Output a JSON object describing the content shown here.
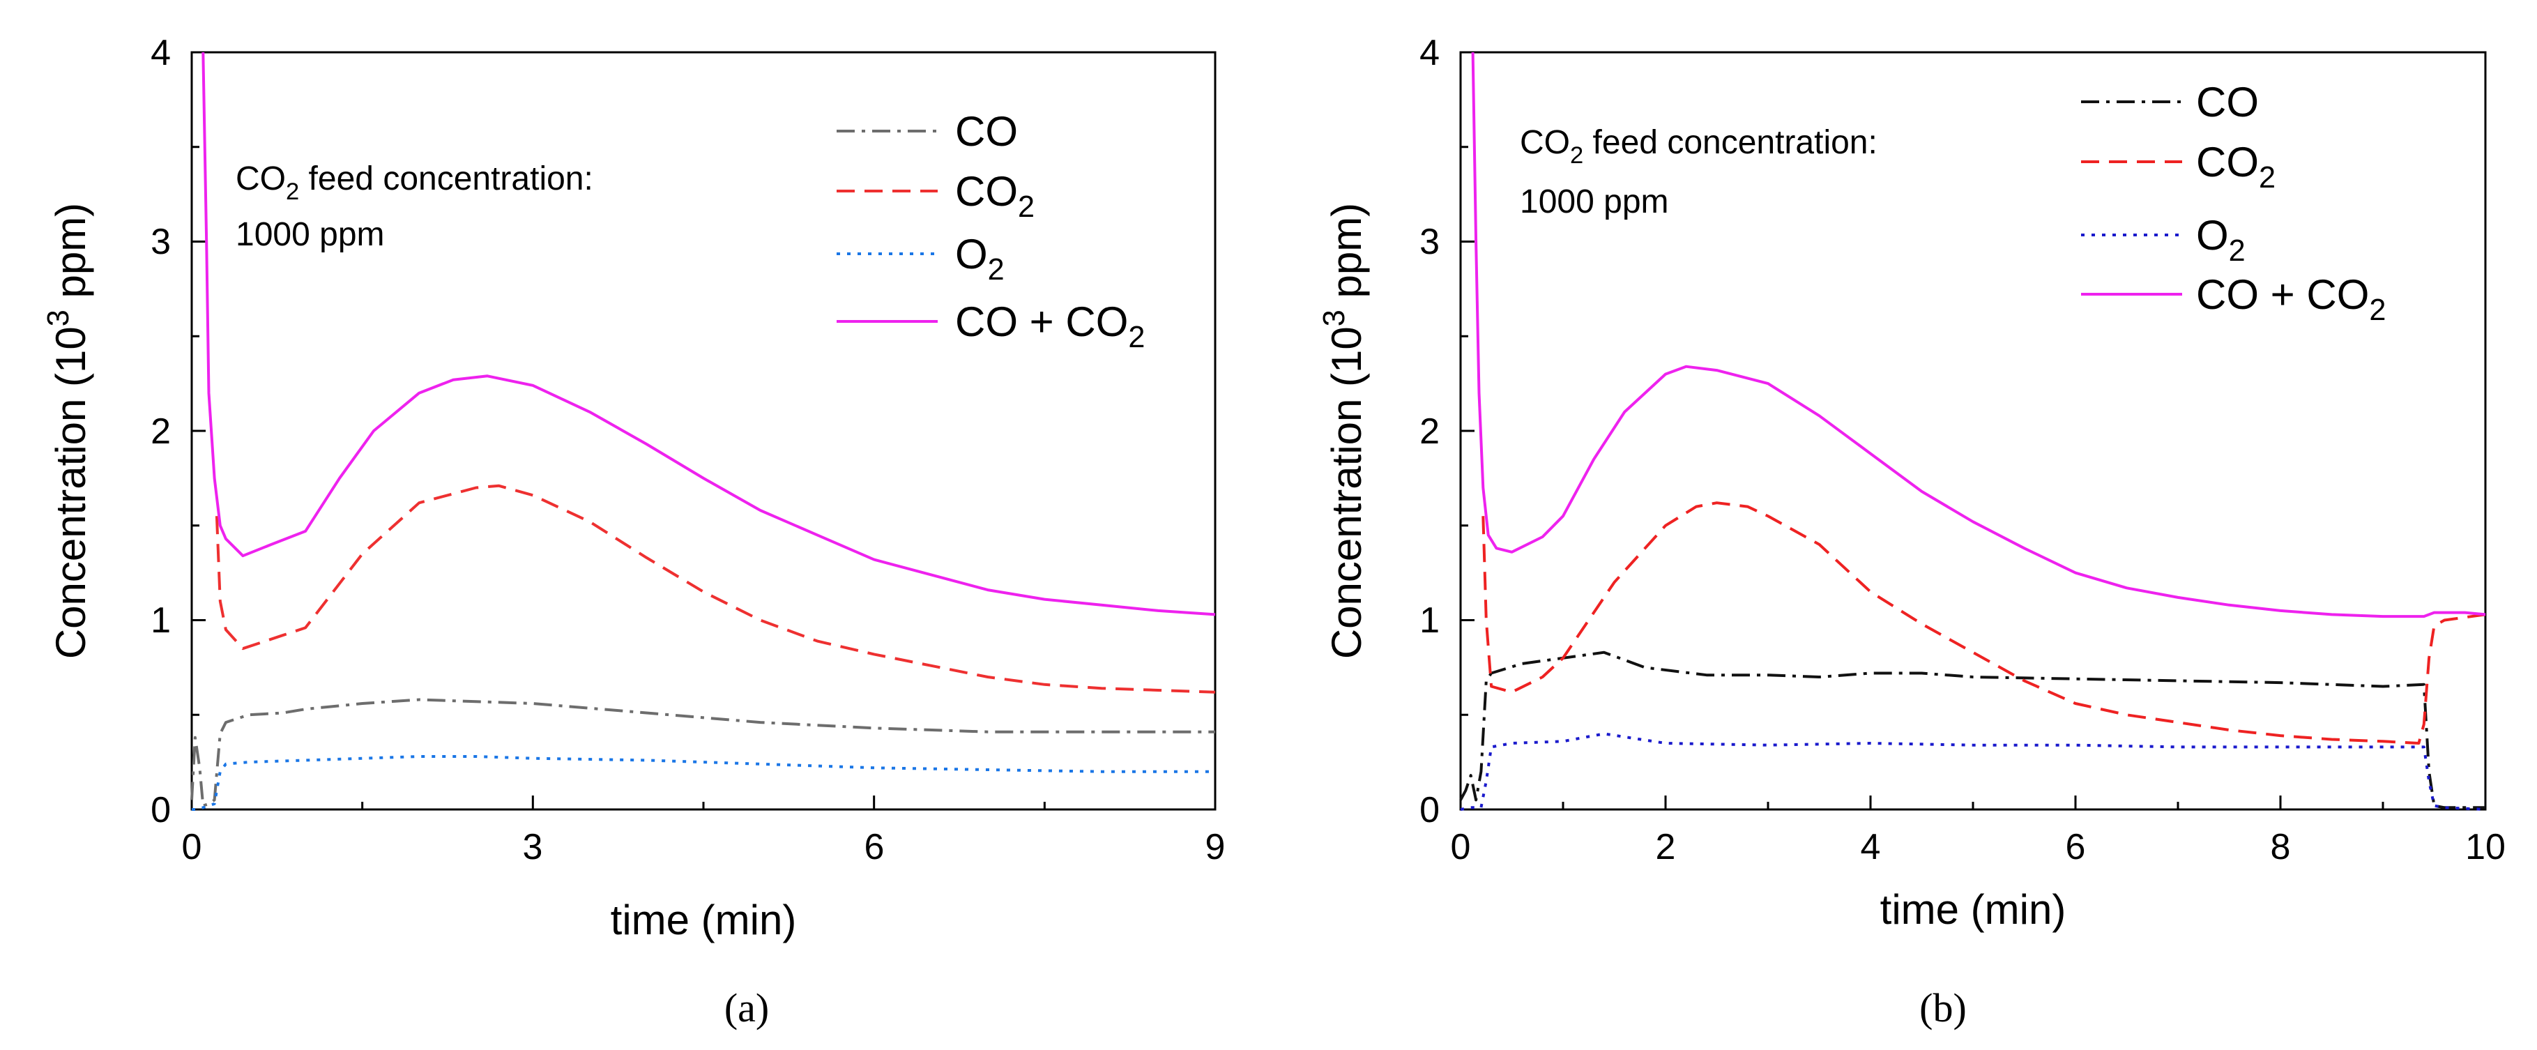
{
  "chart_data": [
    {
      "type": "line",
      "panel": "a",
      "caption": "(a)",
      "xlabel": "time (min)",
      "ylabel_prefix": "Concentration (10",
      "ylabel_sup": "3",
      "ylabel_suffix": " ppm)",
      "xlim": [
        0,
        9
      ],
      "ylim": [
        0,
        4
      ],
      "x_ticks": [
        0,
        3,
        6,
        9
      ],
      "x_tick_labels": [
        "0",
        "3",
        "6",
        "9"
      ],
      "y_ticks": [
        0,
        1,
        2,
        3,
        4
      ],
      "y_tick_labels": [
        "0",
        "1",
        "2",
        "3",
        "4"
      ],
      "annotation": {
        "line1_prefix": "CO",
        "line1_sub": "2",
        "line1_suffix": " feed concentration:",
        "line2": "1000 ppm"
      },
      "legend_position": "top-right",
      "series": [
        {
          "key": "co",
          "name": "CO",
          "legend_label": "CO",
          "legend_sub": "",
          "color": "#6d6d6d",
          "dash": "dashdot",
          "x": [
            0,
            0.03,
            0.07,
            0.1,
            0.15,
            0.2,
            0.25,
            0.3,
            0.5,
            0.8,
            1,
            1.5,
            2,
            2.5,
            3,
            4,
            5,
            6,
            7,
            8,
            9
          ],
          "y": [
            0.05,
            0.38,
            0.22,
            0.02,
            0.03,
            0.05,
            0.4,
            0.46,
            0.5,
            0.51,
            0.53,
            0.56,
            0.58,
            0.57,
            0.56,
            0.51,
            0.46,
            0.43,
            0.41,
            0.41,
            0.41
          ]
        },
        {
          "key": "co2",
          "name": "CO2",
          "legend_label": "CO",
          "legend_sub": "2",
          "color": "#ee3030",
          "dash": "dashed",
          "x": [
            0.22,
            0.25,
            0.3,
            0.45,
            0.8,
            1,
            1.5,
            2,
            2.5,
            2.7,
            3,
            3.5,
            4,
            4.5,
            5,
            5.5,
            6,
            6.5,
            7,
            7.5,
            8,
            8.5,
            9
          ],
          "y": [
            1.55,
            1.1,
            0.95,
            0.85,
            0.92,
            0.96,
            1.35,
            1.62,
            1.7,
            1.71,
            1.66,
            1.52,
            1.33,
            1.15,
            1.0,
            0.89,
            0.82,
            0.76,
            0.7,
            0.66,
            0.64,
            0.63,
            0.62
          ]
        },
        {
          "key": "o2",
          "name": "O2",
          "legend_label": "O",
          "legend_sub": "2",
          "color": "#1a76e6",
          "dash": "dotted",
          "x": [
            0,
            0.05,
            0.1,
            0.15,
            0.2,
            0.25,
            0.3,
            0.5,
            1,
            1.5,
            2,
            2.5,
            3,
            4,
            5,
            6,
            7,
            8,
            9
          ],
          "y": [
            0.0,
            0.0,
            0.01,
            0.02,
            0.03,
            0.2,
            0.24,
            0.25,
            0.26,
            0.27,
            0.28,
            0.28,
            0.27,
            0.26,
            0.24,
            0.22,
            0.21,
            0.2,
            0.2
          ]
        },
        {
          "key": "sum",
          "name": "CO + CO2",
          "legend_label": "CO + CO",
          "legend_sub": "2",
          "color": "#ee22ee",
          "dash": "solid",
          "x": [
            0.1,
            0.13,
            0.15,
            0.2,
            0.25,
            0.3,
            0.45,
            0.7,
            1,
            1.3,
            1.6,
            2,
            2.3,
            2.6,
            3,
            3.5,
            4,
            4.5,
            5,
            5.5,
            6,
            6.5,
            7,
            7.5,
            8,
            8.5,
            9
          ],
          "y": [
            4.0,
            3.0,
            2.2,
            1.75,
            1.5,
            1.43,
            1.34,
            1.4,
            1.47,
            1.75,
            2.0,
            2.2,
            2.27,
            2.29,
            2.24,
            2.1,
            1.93,
            1.75,
            1.58,
            1.45,
            1.32,
            1.24,
            1.16,
            1.11,
            1.08,
            1.05,
            1.03
          ]
        }
      ]
    },
    {
      "type": "line",
      "panel": "b",
      "caption": "(b)",
      "xlabel": "time (min)",
      "ylabel_prefix": "Concentration (10",
      "ylabel_sup": "3",
      "ylabel_suffix": " ppm)",
      "xlim": [
        0,
        10
      ],
      "ylim": [
        0,
        4
      ],
      "x_ticks": [
        0,
        2,
        4,
        6,
        8,
        10
      ],
      "x_tick_labels": [
        "0",
        "2",
        "4",
        "6",
        "8",
        "10"
      ],
      "y_ticks": [
        0,
        1,
        2,
        3,
        4
      ],
      "y_tick_labels": [
        "0",
        "1",
        "2",
        "3",
        "4"
      ],
      "annotation": {
        "line1_prefix": "CO",
        "line1_sub": "2",
        "line1_suffix": " feed concentration:",
        "line2": "1000 ppm"
      },
      "legend_position": "top-right",
      "series": [
        {
          "key": "co",
          "name": "CO",
          "legend_label": "CO",
          "legend_sub": "",
          "color": "#111111",
          "dash": "dashdot",
          "x": [
            0,
            0.05,
            0.1,
            0.15,
            0.2,
            0.25,
            0.3,
            0.6,
            1,
            1.4,
            1.8,
            2.4,
            3,
            3.5,
            4,
            4.5,
            5,
            6,
            7,
            8,
            9,
            9.4,
            9.45,
            9.5,
            9.6,
            10
          ],
          "y": [
            0.05,
            0.1,
            0.18,
            0.05,
            0.2,
            0.68,
            0.72,
            0.77,
            0.8,
            0.83,
            0.75,
            0.71,
            0.71,
            0.7,
            0.72,
            0.72,
            0.7,
            0.69,
            0.68,
            0.67,
            0.65,
            0.66,
            0.2,
            0.02,
            0.01,
            0.01
          ]
        },
        {
          "key": "co2",
          "name": "CO2",
          "legend_label": "CO",
          "legend_sub": "2",
          "color": "#ee2222",
          "dash": "dashed",
          "x": [
            0.22,
            0.25,
            0.3,
            0.5,
            0.8,
            1,
            1.5,
            2,
            2.3,
            2.5,
            2.8,
            3,
            3.5,
            4,
            4.5,
            5,
            5.5,
            6,
            6.5,
            7,
            7.5,
            8,
            8.5,
            9,
            9.35,
            9.4,
            9.45,
            9.5,
            9.6,
            10
          ],
          "y": [
            1.55,
            1.0,
            0.65,
            0.62,
            0.7,
            0.8,
            1.2,
            1.5,
            1.6,
            1.62,
            1.6,
            1.55,
            1.4,
            1.15,
            0.98,
            0.83,
            0.68,
            0.56,
            0.5,
            0.46,
            0.42,
            0.39,
            0.37,
            0.36,
            0.35,
            0.45,
            0.8,
            0.97,
            1.0,
            1.03
          ]
        },
        {
          "key": "o2",
          "name": "O2",
          "legend_label": "O",
          "legend_sub": "2",
          "color": "#1a1acc",
          "dash": "dotted",
          "x": [
            0,
            0.1,
            0.2,
            0.25,
            0.3,
            0.5,
            1,
            1.4,
            2,
            3,
            4,
            5,
            6,
            7,
            8,
            9,
            9.4,
            9.45,
            9.5,
            9.6,
            10
          ],
          "y": [
            0.0,
            0.01,
            0.01,
            0.15,
            0.33,
            0.35,
            0.36,
            0.4,
            0.35,
            0.34,
            0.35,
            0.34,
            0.34,
            0.33,
            0.33,
            0.33,
            0.33,
            0.15,
            0.02,
            0.01,
            0.0
          ]
        },
        {
          "key": "sum",
          "name": "CO + CO2",
          "legend_label": "CO + CO",
          "legend_sub": "2",
          "color": "#ee22ee",
          "dash": "solid",
          "x": [
            0.12,
            0.15,
            0.18,
            0.22,
            0.27,
            0.35,
            0.5,
            0.8,
            1,
            1.3,
            1.6,
            2,
            2.2,
            2.5,
            3,
            3.5,
            4,
            4.5,
            5,
            5.5,
            6,
            6.5,
            7,
            7.5,
            8,
            8.5,
            9,
            9.4,
            9.5,
            9.8,
            10
          ],
          "y": [
            4.0,
            3.0,
            2.2,
            1.7,
            1.45,
            1.38,
            1.36,
            1.44,
            1.55,
            1.85,
            2.1,
            2.3,
            2.34,
            2.32,
            2.25,
            2.08,
            1.88,
            1.68,
            1.52,
            1.38,
            1.25,
            1.17,
            1.12,
            1.08,
            1.05,
            1.03,
            1.02,
            1.02,
            1.04,
            1.04,
            1.03
          ]
        }
      ]
    }
  ]
}
